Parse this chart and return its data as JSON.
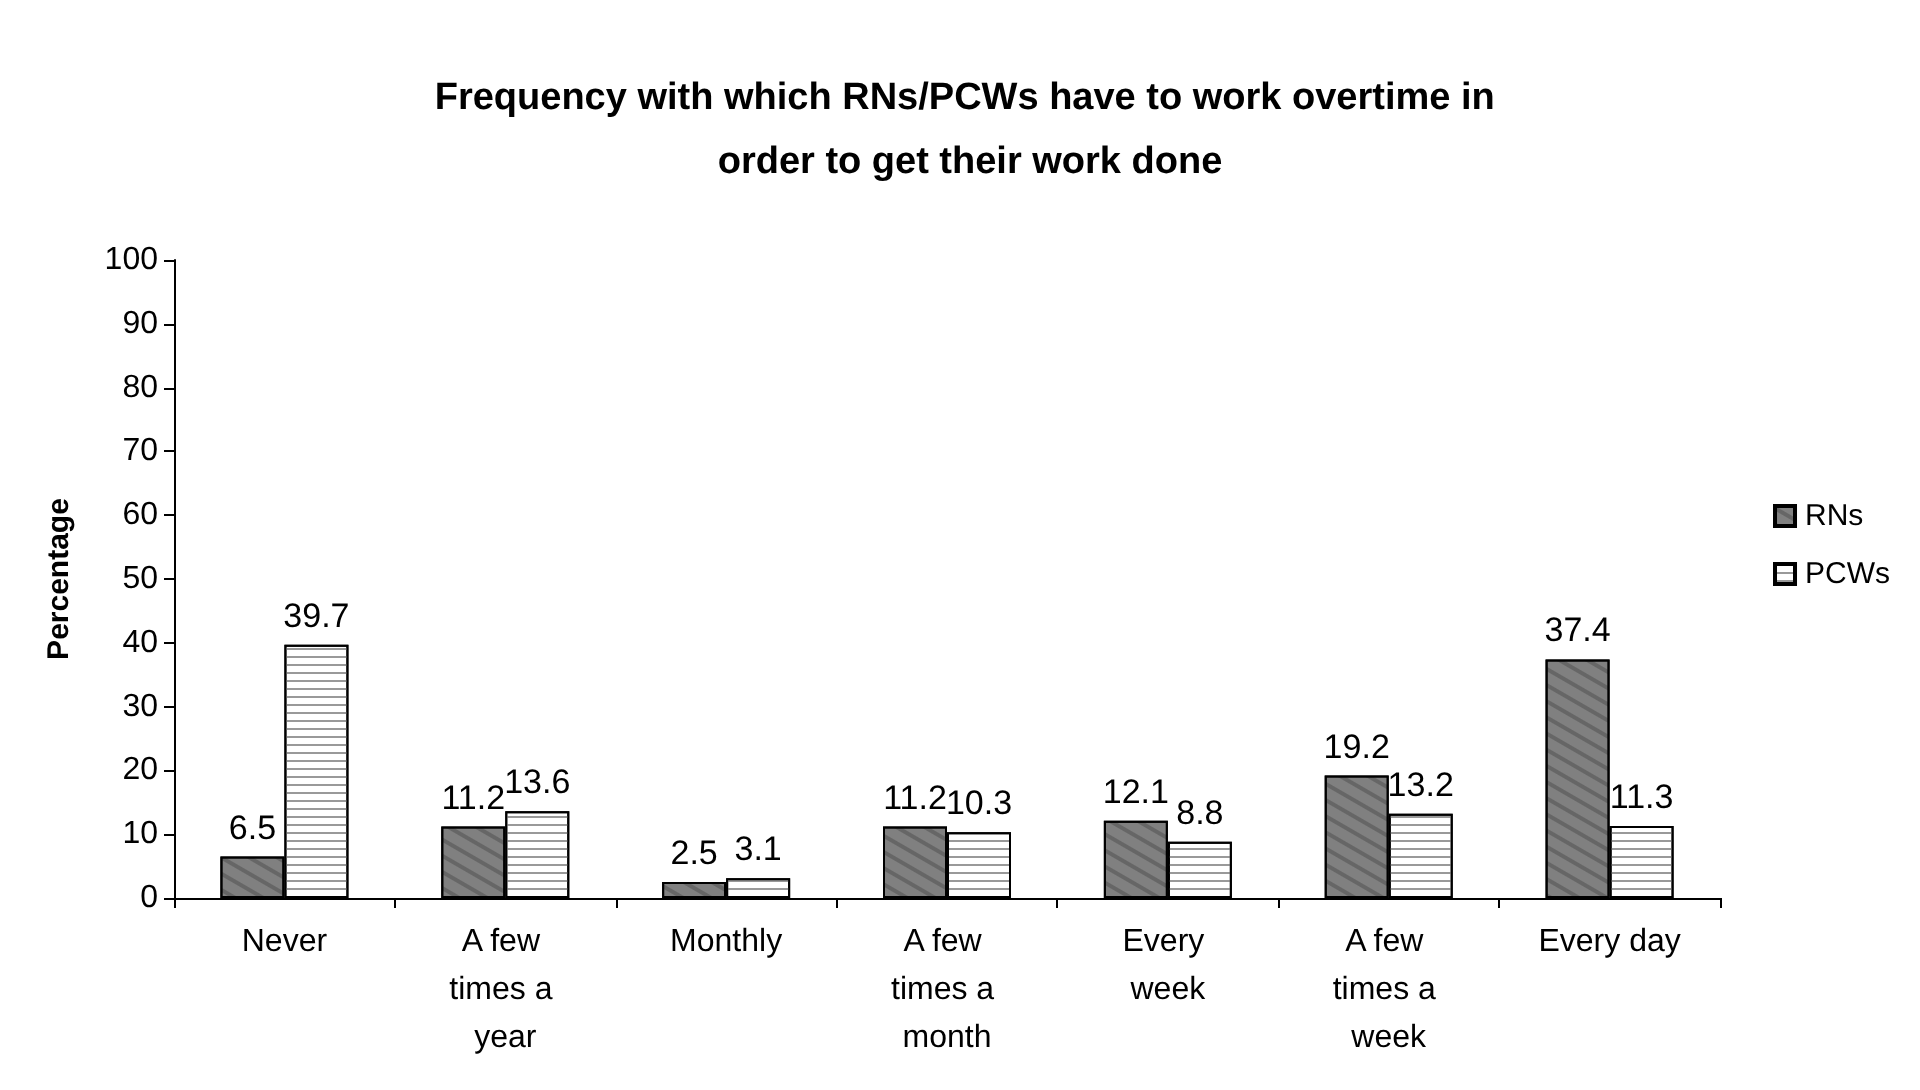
{
  "chart_data": {
    "type": "bar",
    "title": "Frequency with which RNs/PCWs have to work overtime in order to get their work done",
    "ylabel": "Percentage",
    "categories": [
      "Never",
      "A few times a year",
      "Monthly",
      "A few times a month",
      "Every week",
      "A few times a week",
      "Every day"
    ],
    "series": [
      {
        "name": "RNs",
        "color": "#808080",
        "values": [
          6.5,
          11.2,
          2.5,
          11.2,
          12.1,
          19.2,
          37.4
        ]
      },
      {
        "name": "PCWs",
        "color": "#ffffff",
        "values": [
          39.7,
          13.6,
          3.1,
          10.3,
          8.8,
          13.2,
          11.3
        ]
      }
    ],
    "ylim": [
      0,
      100
    ],
    "yticks": [
      0,
      10,
      20,
      30,
      40,
      50,
      60,
      70,
      80,
      90,
      100
    ],
    "grid": false,
    "legend": "right",
    "data_labels": true
  }
}
